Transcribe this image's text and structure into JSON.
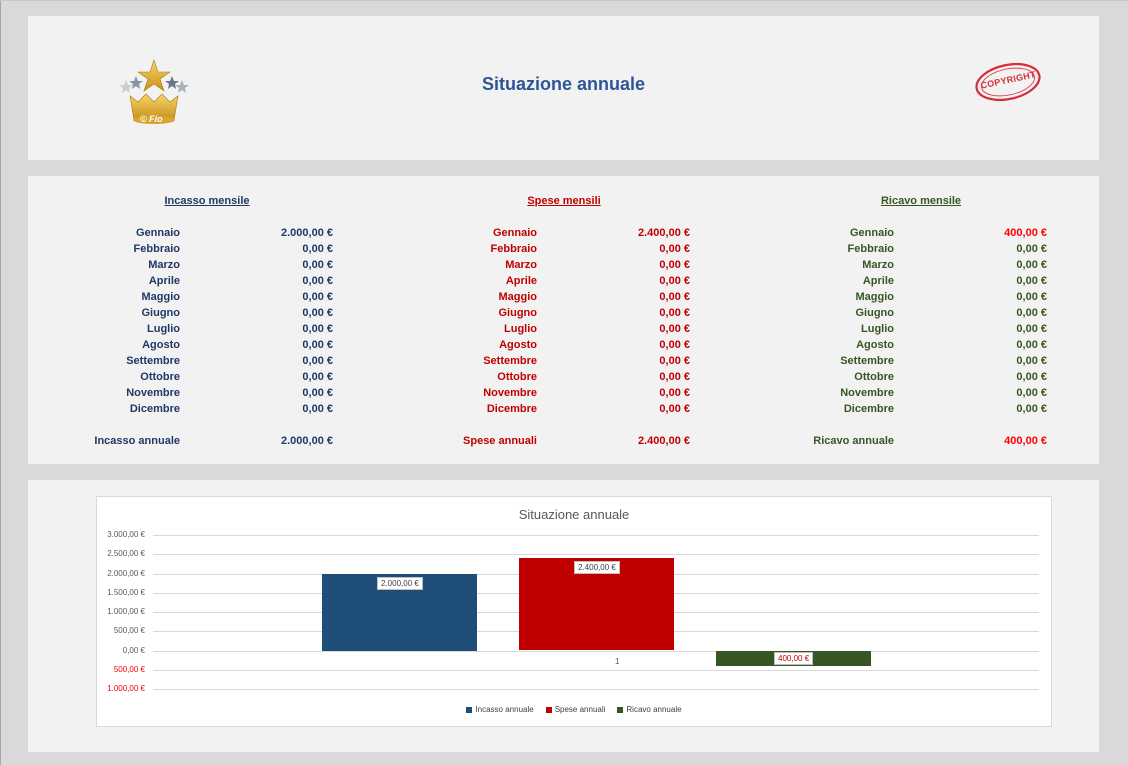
{
  "header": {
    "title": "Situazione annuale",
    "logo_text": "© Fio",
    "stamp_text": "COPYRIGHT"
  },
  "months": [
    "Gennaio",
    "Febbraio",
    "Marzo",
    "Aprile",
    "Maggio",
    "Giugno",
    "Luglio",
    "Agosto",
    "Settembre",
    "Ottobre",
    "Novembre",
    "Dicembre"
  ],
  "income": {
    "heading": "Incasso mensile",
    "values": [
      "2.000,00 €",
      "0,00 €",
      "0,00 €",
      "0,00 €",
      "0,00 €",
      "0,00 €",
      "0,00 €",
      "0,00 €",
      "0,00 €",
      "0,00 €",
      "0,00 €",
      "0,00 €"
    ],
    "total_label": "Incasso annuale",
    "total_value": "2.000,00 €",
    "color": "#203864"
  },
  "expenses": {
    "heading": "Spese mensili",
    "values": [
      "2.400,00 €",
      "0,00 €",
      "0,00 €",
      "0,00 €",
      "0,00 €",
      "0,00 €",
      "0,00 €",
      "0,00 €",
      "0,00 €",
      "0,00 €",
      "0,00 €",
      "0,00 €"
    ],
    "total_label": "Spese annuali",
    "total_value": "2.400,00 €",
    "color": "#c00000"
  },
  "profit": {
    "heading": "Ricavo mensile",
    "values": [
      "400,00 €",
      "0,00 €",
      "0,00 €",
      "0,00 €",
      "0,00 €",
      "0,00 €",
      "0,00 €",
      "0,00 €",
      "0,00 €",
      "0,00 €",
      "0,00 €",
      "0,00 €"
    ],
    "total_label": "Ricavo annuale",
    "total_value": "400,00 €",
    "color": "#375623"
  },
  "chart_data": {
    "type": "bar",
    "title": "Situazione annuale",
    "categories": [
      "1"
    ],
    "series": [
      {
        "name": "Incasso annuale",
        "values": [
          2000
        ],
        "color": "#1f4e79",
        "label": "2.000,00 €"
      },
      {
        "name": "Spese annuali",
        "values": [
          2400
        ],
        "color": "#c00000",
        "label": "2.400,00 €"
      },
      {
        "name": "Ricavo annuale",
        "values": [
          -400
        ],
        "color": "#375623",
        "label": "400,00 €"
      }
    ],
    "ylim": [
      -1000,
      3000
    ],
    "yticks": [
      {
        "value": 3000,
        "label": "3.000,00 €",
        "color": "#595959"
      },
      {
        "value": 2500,
        "label": "2.500,00 €",
        "color": "#595959"
      },
      {
        "value": 2000,
        "label": "2.000,00 €",
        "color": "#595959"
      },
      {
        "value": 1500,
        "label": "1.500,00 €",
        "color": "#595959"
      },
      {
        "value": 1000,
        "label": "1.000,00 €",
        "color": "#595959"
      },
      {
        "value": 500,
        "label": "500,00 €",
        "color": "#595959"
      },
      {
        "value": 0,
        "label": "0,00 €",
        "color": "#595959"
      },
      {
        "value": -500,
        "label": "500,00 €",
        "color": "#ff0000"
      },
      {
        "value": -1000,
        "label": "1.000,00 €",
        "color": "#ff0000"
      }
    ],
    "grid": true,
    "legend": "bottom"
  }
}
